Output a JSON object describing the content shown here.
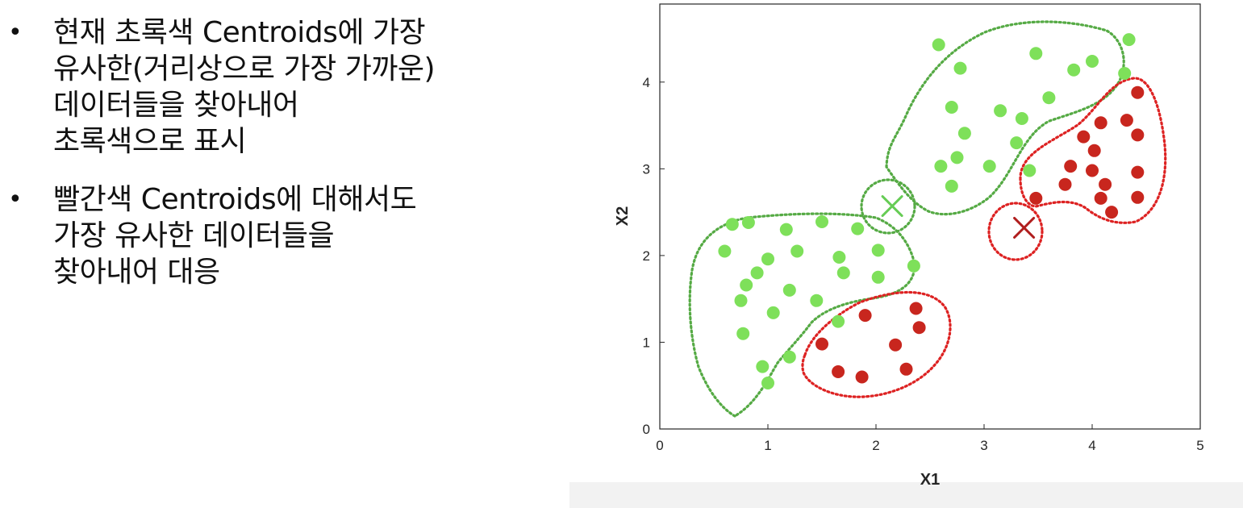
{
  "bullets": [
    {
      "lines": [
        "현재 초록색 Centroids에 가장",
        "유사한(거리상으로 가장 가까운)",
        "데이터들을 찾아내어",
        "초록색으로 표시"
      ]
    },
    {
      "lines": [
        "빨간색 Centroids에 대해서도",
        "가장 유사한 데이터들을",
        "찾아내어 대응"
      ]
    }
  ],
  "bullet_symbol": "•",
  "chart_data": {
    "type": "scatter",
    "title": "",
    "xlabel": "X1",
    "ylabel": "X2",
    "xlim": [
      0,
      5
    ],
    "ylim": [
      0,
      4.9
    ],
    "xticks": [
      0,
      1,
      2,
      3,
      4,
      5
    ],
    "yticks": [
      0,
      1,
      2,
      3,
      4
    ],
    "grid": false,
    "colors": {
      "green": "#7ee05a",
      "green_centroid": "#66cc55",
      "red": "#c8261e",
      "red_centroid": "#b01e1e",
      "green_outline": "#55aa44",
      "red_outline": "#dd2222"
    },
    "series": [
      {
        "color": "green",
        "points": [
          [
            2.58,
            4.43
          ],
          [
            3.48,
            4.33
          ],
          [
            4.34,
            4.49
          ],
          [
            4.0,
            4.24
          ],
          [
            3.83,
            4.14
          ],
          [
            2.78,
            4.16
          ],
          [
            4.3,
            4.1
          ],
          [
            3.6,
            3.82
          ],
          [
            2.7,
            3.71
          ],
          [
            3.15,
            3.67
          ],
          [
            3.35,
            3.58
          ],
          [
            2.82,
            3.41
          ],
          [
            3.3,
            3.3
          ],
          [
            2.75,
            3.13
          ],
          [
            2.6,
            3.03
          ],
          [
            3.05,
            3.03
          ],
          [
            3.42,
            2.98
          ],
          [
            2.7,
            2.8
          ],
          [
            0.67,
            2.36
          ],
          [
            0.82,
            2.38
          ],
          [
            1.5,
            2.39
          ],
          [
            1.83,
            2.31
          ],
          [
            1.17,
            2.3
          ],
          [
            0.6,
            2.05
          ],
          [
            1.27,
            2.05
          ],
          [
            2.02,
            2.06
          ],
          [
            1.0,
            1.96
          ],
          [
            1.66,
            1.98
          ],
          [
            0.9,
            1.8
          ],
          [
            1.7,
            1.8
          ],
          [
            2.02,
            1.75
          ],
          [
            0.8,
            1.66
          ],
          [
            1.2,
            1.6
          ],
          [
            2.35,
            1.88
          ],
          [
            0.75,
            1.48
          ],
          [
            1.45,
            1.48
          ],
          [
            1.05,
            1.34
          ],
          [
            1.65,
            1.24
          ],
          [
            0.77,
            1.1
          ],
          [
            1.2,
            0.83
          ],
          [
            0.95,
            0.72
          ],
          [
            1.0,
            0.53
          ]
        ]
      },
      {
        "color": "red",
        "points": [
          [
            4.42,
            3.88
          ],
          [
            4.08,
            3.53
          ],
          [
            4.32,
            3.56
          ],
          [
            3.92,
            3.37
          ],
          [
            4.42,
            3.39
          ],
          [
            4.02,
            3.21
          ],
          [
            3.8,
            3.03
          ],
          [
            4.0,
            2.98
          ],
          [
            4.42,
            2.96
          ],
          [
            3.75,
            2.82
          ],
          [
            4.12,
            2.82
          ],
          [
            3.48,
            2.66
          ],
          [
            4.08,
            2.66
          ],
          [
            4.42,
            2.67
          ],
          [
            4.18,
            2.5
          ],
          [
            2.37,
            1.39
          ],
          [
            1.9,
            1.31
          ],
          [
            2.4,
            1.17
          ],
          [
            1.5,
            0.98
          ],
          [
            2.18,
            0.97
          ],
          [
            1.65,
            0.66
          ],
          [
            1.87,
            0.6
          ],
          [
            2.28,
            0.69
          ]
        ]
      }
    ],
    "centroids": [
      {
        "label": "green",
        "x": 2.15,
        "y": 2.57
      },
      {
        "label": "red",
        "x": 3.37,
        "y": 2.32
      }
    ]
  }
}
